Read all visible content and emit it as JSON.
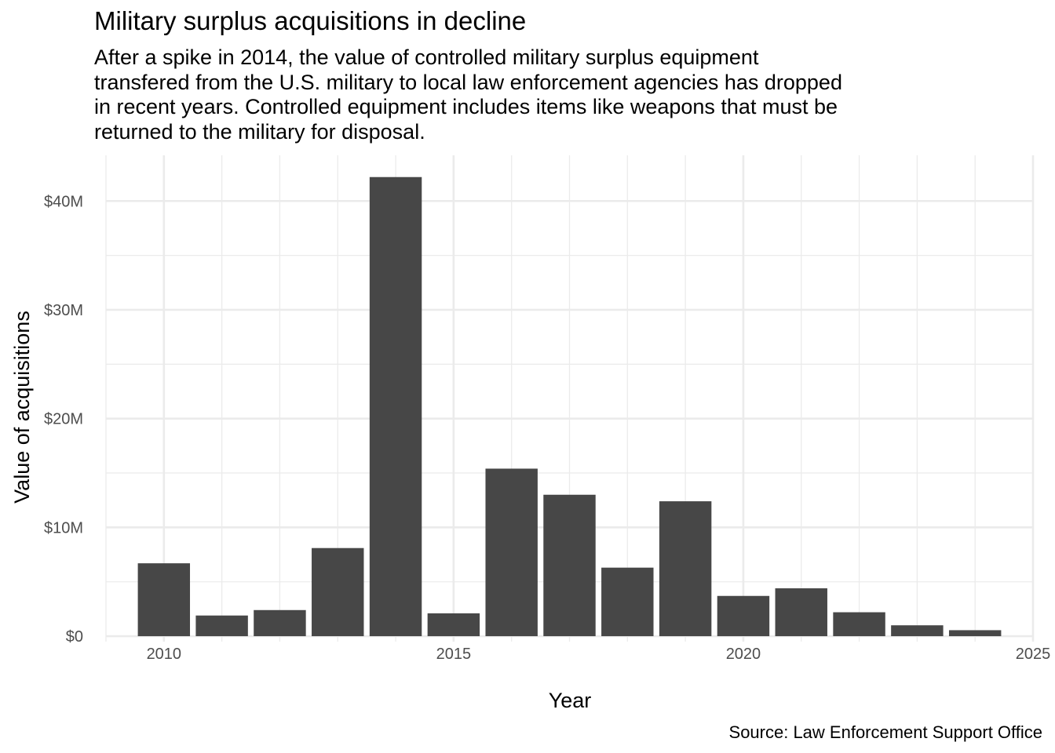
{
  "chart_data": {
    "type": "bar",
    "title": "Military surplus acquisitions in decline",
    "subtitle_lines": [
      "After a spike in 2014, the value of controlled military surplus equipment",
      "transfered from the U.S. military to local law enforcement agencies has dropped",
      "in recent years. Controlled equipment includes items like weapons that must be",
      "returned to the military for disposal."
    ],
    "xlabel": "Year",
    "ylabel": "Value of acquisitions",
    "caption": "Source: Law Enforcement Support Office",
    "x": [
      2010,
      2011,
      2012,
      2013,
      2014,
      2015,
      2016,
      2017,
      2018,
      2019,
      2020,
      2021,
      2022,
      2023,
      2024
    ],
    "values": [
      6.7,
      1.9,
      2.4,
      8.1,
      42.2,
      2.1,
      15.4,
      13.0,
      6.3,
      12.4,
      3.7,
      4.4,
      2.2,
      1.0,
      0.55
    ],
    "value_unit": "millions of US dollars",
    "xlim": [
      2009,
      2025
    ],
    "ylim": [
      -0.5,
      44.2
    ],
    "x_ticks": [
      2010,
      2015,
      2020,
      2025
    ],
    "y_ticks": [
      0,
      10,
      20,
      30,
      40
    ],
    "y_tick_labels": [
      "$0",
      "$10M",
      "$20M",
      "$30M",
      "$40M"
    ],
    "grid": true,
    "bar_color": "#474747",
    "grid_color": "#ebebeb"
  }
}
